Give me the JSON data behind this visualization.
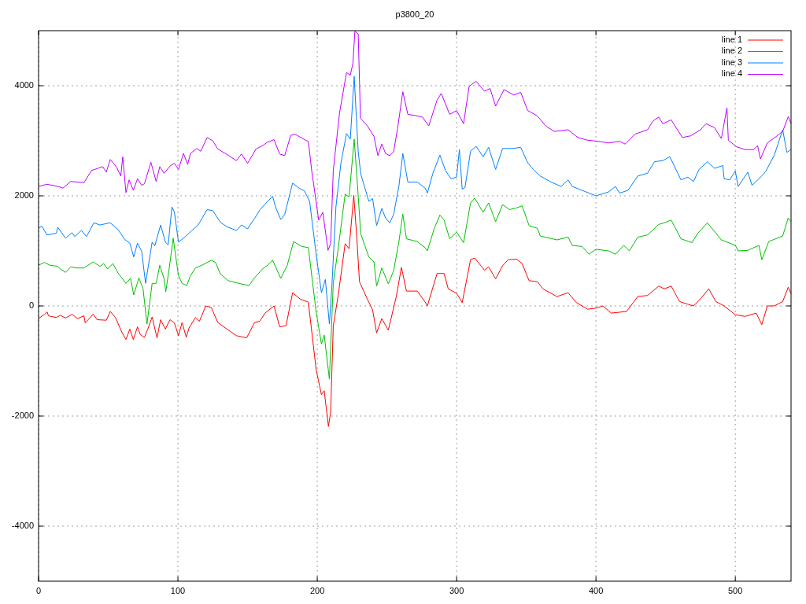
{
  "chart_data": {
    "type": "line",
    "title": "p3800_20",
    "xlim": [
      0,
      540
    ],
    "ylim": [
      -5000,
      5000
    ],
    "xticks": [
      0,
      100,
      200,
      300,
      400,
      500
    ],
    "yticks": [
      -4000,
      -2000,
      0,
      2000,
      4000
    ],
    "grid": true,
    "legend": "top right",
    "line_style": "solid",
    "marker": "none",
    "series": [
      {
        "name": "line 1",
        "color": "#ff0000",
        "x": [
          0,
          4.3,
          6.2,
          7.1,
          12.8,
          15.6,
          19.4,
          24,
          27.9,
          32.6,
          33.5,
          39.2,
          42,
          48.6,
          51.4,
          55.2,
          60,
          62.7,
          65.5,
          68,
          71,
          73,
          76,
          78.7,
          81.5,
          85,
          87.6,
          91,
          94.3,
          97.5,
          100.4,
          103,
          106,
          108,
          112.6,
          115.4,
          120,
          124,
          128.6,
          134,
          142,
          149.3,
          155,
          158.7,
          162.5,
          169,
          173,
          177.6,
          182.3,
          188,
          193.6,
          199.2,
          203,
          205,
          208,
          209.6,
          211.5,
          215,
          220,
          222.8,
          226.2,
          228.4,
          230.3,
          236,
          239.7,
          242.6,
          246.3,
          251,
          256.7,
          260.4,
          264,
          271.7,
          277.4,
          279,
          286,
          291,
          294,
          300,
          304,
          310,
          313,
          320,
          323,
          328,
          333,
          337,
          343,
          347,
          352,
          358,
          362,
          372,
          380,
          386,
          394,
          400,
          405,
          411,
          422,
          430,
          437,
          445,
          449,
          454,
          460,
          466,
          470,
          474,
          481,
          486,
          492,
          500,
          507,
          515,
          519,
          523,
          528,
          534,
          538,
          540
        ],
        "values": [
          -230,
          -150,
          -110,
          -180,
          -210,
          -170,
          -220,
          -150,
          -230,
          -180,
          -310,
          -150,
          -250,
          -260,
          -100,
          -210,
          -490,
          -610,
          -420,
          -610,
          -380,
          -520,
          -570,
          -400,
          -200,
          -580,
          -250,
          -420,
          -250,
          -310,
          -540,
          -300,
          -570,
          -400,
          -210,
          -280,
          0,
          -30,
          -300,
          -400,
          -540,
          -580,
          -300,
          -280,
          -130,
          0,
          -380,
          -360,
          240,
          120,
          70,
          -1160,
          -1610,
          -1540,
          -2190,
          -1930,
          -360,
          190,
          1130,
          1040,
          2010,
          1230,
          440,
          120,
          -70,
          -490,
          -230,
          -440,
          170,
          700,
          270,
          270,
          70,
          0,
          590,
          590,
          310,
          230,
          60,
          840,
          870,
          650,
          710,
          490,
          730,
          840,
          850,
          770,
          460,
          440,
          310,
          170,
          240,
          60,
          -60,
          -40,
          0,
          -130,
          -100,
          170,
          190,
          360,
          310,
          360,
          80,
          30,
          0,
          100,
          310,
          80,
          0,
          -160,
          -190,
          -130,
          -340,
          0,
          0,
          80,
          340,
          220
        ]
      },
      {
        "name": "line 2",
        "color": "#00c000",
        "x": [
          0,
          4.3,
          8,
          13.7,
          15.6,
          19.4,
          23.2,
          27,
          32.6,
          39.2,
          44,
          46.7,
          49.5,
          53.3,
          57,
          62.7,
          66,
          68.3,
          72,
          75,
          77.8,
          81.5,
          84.4,
          87,
          90,
          91.3,
          93.8,
          96.6,
          100.4,
          103,
          106.4,
          109,
          112.6,
          117.3,
          124,
          127,
          130.5,
          136,
          143.7,
          151,
          155,
          160.6,
          164.4,
          168,
          173.8,
          178.5,
          183,
          189,
          193.6,
          199.2,
          203,
          205,
          208.7,
          211.5,
          215,
          220,
          222.8,
          226.5,
          228.4,
          231.2,
          237,
          240.7,
          242.6,
          246.3,
          251,
          254.8,
          258.6,
          261.4,
          264,
          271.7,
          277.4,
          279,
          284,
          288,
          291,
          295,
          300,
          305,
          310,
          313,
          319,
          323,
          328,
          333,
          338,
          343,
          347,
          352,
          358,
          360,
          372,
          380,
          383,
          390,
          395,
          400,
          409,
          414,
          420,
          424,
          430,
          437,
          445,
          449,
          454,
          461,
          469,
          473,
          480,
          490,
          500,
          502,
          509,
          517,
          519,
          524,
          534,
          538,
          540
        ],
        "values": [
          740,
          790,
          740,
          720,
          670,
          610,
          710,
          690,
          690,
          800,
          720,
          770,
          670,
          770,
          600,
          410,
          500,
          200,
          510,
          310,
          -330,
          410,
          410,
          740,
          500,
          260,
          690,
          1230,
          550,
          410,
          370,
          550,
          690,
          740,
          830,
          790,
          580,
          460,
          410,
          370,
          510,
          670,
          740,
          830,
          500,
          740,
          1170,
          1080,
          1060,
          -110,
          -690,
          -530,
          -1330,
          420,
          1040,
          2030,
          1980,
          3030,
          2370,
          1310,
          890,
          800,
          360,
          690,
          400,
          640,
          1170,
          1670,
          1220,
          1170,
          1060,
          1000,
          1410,
          1650,
          1560,
          1220,
          1340,
          1150,
          1870,
          1960,
          1700,
          1870,
          1530,
          1840,
          1750,
          1780,
          1820,
          1460,
          1410,
          1270,
          1200,
          1250,
          1100,
          1080,
          940,
          1030,
          1000,
          940,
          1100,
          1000,
          1250,
          1290,
          1480,
          1510,
          1560,
          1220,
          1150,
          1320,
          1510,
          1200,
          1100,
          1000,
          1010,
          1100,
          840,
          1170,
          1270,
          1600,
          1530
        ]
      },
      {
        "name": "line 3",
        "color": "#0080ff",
        "x": [
          0,
          2.4,
          6,
          12.8,
          13.7,
          19.4,
          24,
          26,
          30.7,
          34.4,
          39.7,
          44,
          51.4,
          57,
          61.8,
          65.5,
          68.3,
          71,
          74,
          76.8,
          81.5,
          83.4,
          87.6,
          91,
          93,
          95.7,
          97.5,
          100.4,
          104,
          110,
          114.5,
          121,
          125,
          130.5,
          135,
          142,
          145.6,
          150,
          155,
          159,
          164,
          168,
          170,
          173.8,
          176.6,
          182.3,
          187,
          190.8,
          194.5,
          199.2,
          203,
          205.8,
          208.7,
          210.5,
          213.4,
          217,
          221,
          223.7,
          226.5,
          229.4,
          231.2,
          237,
          239.7,
          242.6,
          246.3,
          249,
          252,
          254.8,
          258.6,
          261.4,
          265,
          271.7,
          277.4,
          279,
          283,
          288,
          292,
          296,
          300,
          302,
          304,
          306,
          310,
          314,
          319,
          323,
          328,
          333,
          340,
          346,
          351,
          355,
          360,
          367,
          375,
          380,
          383,
          390,
          400,
          409,
          414,
          417,
          423,
          430,
          437,
          442,
          448,
          453,
          461,
          466,
          470,
          474,
          480,
          485,
          491,
          492,
          496,
          500,
          502,
          509,
          512,
          519,
          522,
          528,
          534,
          537,
          540
        ],
        "values": [
          1410,
          1450,
          1290,
          1320,
          1430,
          1230,
          1330,
          1260,
          1370,
          1260,
          1510,
          1470,
          1510,
          1390,
          1210,
          1140,
          890,
          1140,
          990,
          410,
          1160,
          1090,
          1470,
          1160,
          1110,
          1800,
          1700,
          1160,
          1230,
          1370,
          1470,
          1750,
          1730,
          1520,
          1440,
          1370,
          1470,
          1400,
          1590,
          1750,
          1890,
          1990,
          1800,
          1570,
          1660,
          2230,
          2140,
          2090,
          1900,
          940,
          240,
          480,
          -330,
          360,
          1800,
          2600,
          3130,
          3030,
          4170,
          2800,
          2400,
          1900,
          1950,
          1460,
          1770,
          1600,
          1510,
          1660,
          2180,
          2770,
          2250,
          2250,
          2140,
          2050,
          2410,
          2740,
          2460,
          2310,
          2340,
          2840,
          2120,
          2150,
          2810,
          2900,
          2710,
          2880,
          2480,
          2860,
          2860,
          2880,
          2600,
          2480,
          2360,
          2260,
          2170,
          2290,
          2170,
          2100,
          2000,
          2070,
          2170,
          2050,
          2100,
          2360,
          2410,
          2620,
          2640,
          2710,
          2290,
          2340,
          2260,
          2480,
          2620,
          2500,
          2550,
          2310,
          2290,
          2450,
          2170,
          2430,
          2190,
          2360,
          2450,
          2740,
          3200,
          2790,
          2840
        ]
      },
      {
        "name": "line 4",
        "color": "#c000ff",
        "x": [
          0,
          6,
          14,
          17.5,
          23,
          32.6,
          38,
          46,
          48.6,
          51.4,
          56,
          59,
          60.4,
          62.7,
          65,
          68,
          71,
          74,
          76,
          80.6,
          84.4,
          87,
          90,
          94.7,
          97.5,
          100.4,
          104,
          107,
          109,
          113.5,
          116.4,
          121,
          125,
          128.6,
          134,
          142,
          145.6,
          150,
          156,
          160.6,
          164,
          169,
          173,
          176.6,
          181,
          184,
          191.7,
          193.6,
          196,
          199.2,
          201,
          204,
          207.7,
          209.6,
          211.5,
          216,
          221,
          223.7,
          225.6,
          227,
          229.4,
          231,
          236,
          240.7,
          243.5,
          246.3,
          249,
          252,
          254.8,
          257.6,
          261.4,
          265,
          270,
          275.5,
          280,
          286,
          289,
          295,
          300,
          305,
          309,
          314,
          320,
          324,
          328,
          334,
          341,
          346,
          351,
          358,
          364,
          370,
          380,
          387,
          394,
          402,
          409,
          417,
          421,
          428,
          437,
          441,
          445,
          448,
          454,
          462,
          468,
          475,
          479,
          485,
          490,
          494,
          495,
          501,
          507,
          513,
          516,
          518,
          523,
          530,
          534,
          538,
          540
        ],
        "values": [
          2170,
          2210,
          2170,
          2140,
          2260,
          2240,
          2460,
          2530,
          2430,
          2660,
          2520,
          2360,
          2710,
          2060,
          2290,
          2100,
          2310,
          2190,
          2220,
          2610,
          2260,
          2530,
          2410,
          2550,
          2590,
          2480,
          2770,
          2570,
          2770,
          2860,
          2810,
          3060,
          3000,
          2850,
          2770,
          2640,
          2760,
          2590,
          2850,
          2910,
          2970,
          3020,
          2760,
          2730,
          3100,
          3120,
          3010,
          2990,
          2460,
          1890,
          1560,
          1700,
          1010,
          1130,
          2460,
          3510,
          4240,
          4190,
          4410,
          4990,
          4940,
          3410,
          3270,
          3080,
          2730,
          2940,
          2770,
          2730,
          2800,
          3220,
          3890,
          3480,
          3460,
          3430,
          3270,
          3740,
          3860,
          3480,
          3550,
          3310,
          3990,
          4080,
          3900,
          3950,
          3630,
          3930,
          3830,
          3880,
          3550,
          3450,
          3270,
          3170,
          3200,
          3060,
          3010,
          2990,
          2960,
          2990,
          2940,
          3120,
          3200,
          3360,
          3430,
          3310,
          3380,
          3060,
          3090,
          3200,
          3310,
          3240,
          3040,
          3600,
          3010,
          2890,
          2840,
          2840,
          2910,
          2670,
          2960,
          3090,
          3170,
          3440,
          3310
        ]
      }
    ]
  }
}
